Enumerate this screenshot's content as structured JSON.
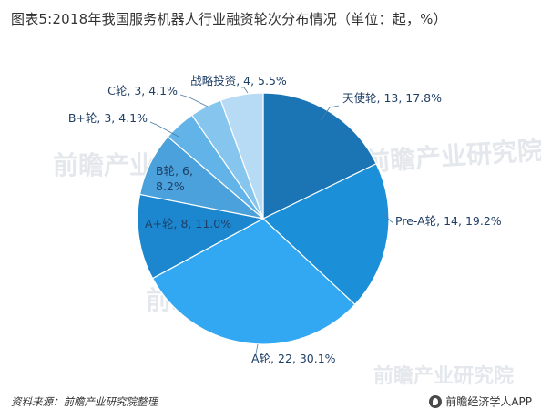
{
  "title": "图表5:2018年我国服务机器人行业融资轮次分布情况（单位：起，%）",
  "watermark": "前瞻产业研究院",
  "footer": {
    "source": "资料来源：前瞻产业研究院整理",
    "brand": "前瞻经济学人APP",
    "brand_icon": "qianzhan-logo-icon"
  },
  "chart_data": {
    "type": "pie",
    "title": "图表5:2018年我国服务机器人行业融资轮次分布情况（单位：起，%）",
    "unit": "起，%",
    "slices": [
      {
        "label": "天使轮",
        "count": 13,
        "percent": 17.8,
        "color": "#1b75b4",
        "display": [
          "天使轮, 13, 17.8%"
        ]
      },
      {
        "label": "Pre-A轮",
        "count": 14,
        "percent": 19.2,
        "color": "#1b8fd8",
        "display": [
          "Pre-A轮, 14, 19.2%"
        ]
      },
      {
        "label": "A轮",
        "count": 22,
        "percent": 30.1,
        "color": "#33a8f2",
        "display": [
          "A轮, 22, 30.1%"
        ]
      },
      {
        "label": "A+轮",
        "count": 8,
        "percent": 11.0,
        "color": "#1c87cf",
        "display": [
          "A+轮, 8, 11.0%"
        ]
      },
      {
        "label": "B轮",
        "count": 6,
        "percent": 8.2,
        "color": "#4aa1db",
        "display": [
          "B轮, 6,",
          "8.2%"
        ]
      },
      {
        "label": "B+轮",
        "count": 3,
        "percent": 4.1,
        "color": "#62b4e8",
        "display": [
          "B+轮, 3, 4.1%"
        ]
      },
      {
        "label": "C轮",
        "count": 3,
        "percent": 4.1,
        "color": "#86c6ee",
        "display": [
          "C轮, 3, 4.1%"
        ]
      },
      {
        "label": "战略投资",
        "count": 4,
        "percent": 5.5,
        "color": "#b7dbf5",
        "display": [
          "战略投资, 4, 5.5%"
        ]
      }
    ]
  }
}
